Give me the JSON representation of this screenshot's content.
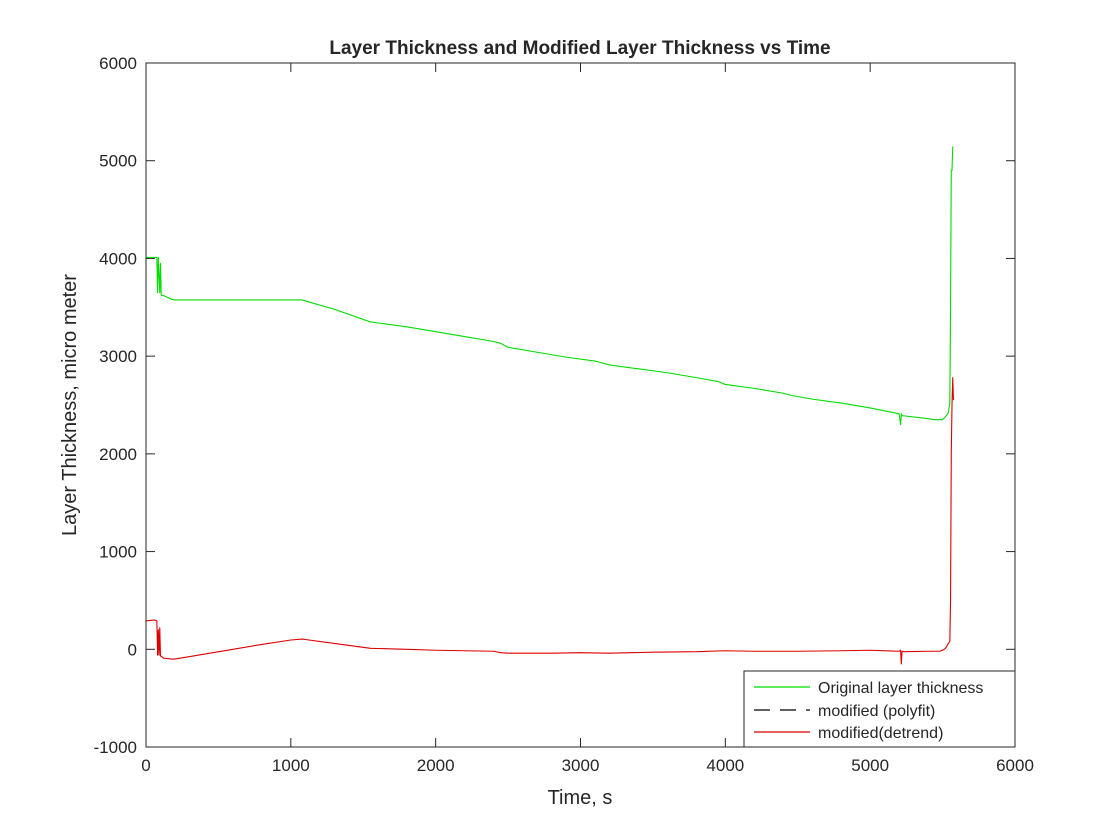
{
  "chart_data": {
    "type": "line",
    "title": "Layer Thickness and Modified Layer Thickness vs Time",
    "xlabel": "Time, s",
    "ylabel": "Layer Thickness, micro meter",
    "xlim": [
      0,
      6000
    ],
    "ylim": [
      -1000,
      6000
    ],
    "xticks": [
      0,
      1000,
      2000,
      3000,
      4000,
      5000,
      6000
    ],
    "yticks": [
      -1000,
      0,
      1000,
      2000,
      3000,
      4000,
      5000,
      6000
    ],
    "xtick_labels": [
      "0",
      "1000",
      "2000",
      "3000",
      "4000",
      "5000",
      "6000"
    ],
    "ytick_labels": [
      "-1000",
      "0",
      "1000",
      "2000",
      "3000",
      "4000",
      "5000",
      "6000"
    ],
    "legend_position": "bottom-right",
    "series": [
      {
        "name": "Original layer thickness",
        "color": "#00dd00",
        "dash": "solid",
        "x": [
          0,
          60,
          75,
          80,
          85,
          95,
          100,
          105,
          110,
          120,
          150,
          180,
          200,
          400,
          800,
          1000,
          1080,
          1100,
          1300,
          1550,
          1800,
          2000,
          2200,
          2400,
          2450,
          2500,
          2700,
          2900,
          3100,
          3200,
          3400,
          3600,
          3800,
          3950,
          4000,
          4200,
          4400,
          4450,
          4600,
          4800,
          5000,
          5200,
          5210,
          5215,
          5220,
          5225,
          5230,
          5400,
          5450,
          5500,
          5520,
          5540,
          5550,
          5555,
          5560,
          5565,
          5570,
          5575
        ],
        "y": [
          4010,
          4010,
          4010,
          3650,
          4010,
          3650,
          3950,
          3630,
          3620,
          3620,
          3600,
          3580,
          3575,
          3575,
          3575,
          3575,
          3575,
          3565,
          3480,
          3350,
          3300,
          3250,
          3200,
          3150,
          3130,
          3090,
          3040,
          2990,
          2950,
          2910,
          2870,
          2830,
          2780,
          2740,
          2710,
          2670,
          2620,
          2600,
          2560,
          2520,
          2470,
          2410,
          2300,
          2410,
          2390,
          2390,
          2390,
          2360,
          2350,
          2350,
          2380,
          2420,
          2520,
          3500,
          4900,
          4900,
          5140,
          5140
        ]
      },
      {
        "name": "modified (polyfit)",
        "color": "#000000",
        "dash": "dashed",
        "x": [],
        "y": []
      },
      {
        "name": "modified(detrend)",
        "color": "#dd0000",
        "dash": "solid",
        "x": [
          0,
          60,
          75,
          80,
          85,
          90,
          95,
          100,
          105,
          120,
          150,
          180,
          200,
          400,
          600,
          800,
          1000,
          1080,
          1100,
          1300,
          1550,
          1800,
          2000,
          2200,
          2400,
          2450,
          2500,
          2800,
          3000,
          3200,
          3500,
          3800,
          4000,
          4200,
          4500,
          4800,
          5000,
          5200,
          5210,
          5215,
          5220,
          5225,
          5230,
          5400,
          5480,
          5500,
          5520,
          5540,
          5550,
          5555,
          5560,
          5565,
          5570,
          5575
        ],
        "y": [
          290,
          300,
          290,
          -60,
          200,
          -60,
          220,
          -70,
          -70,
          -90,
          -95,
          -100,
          -100,
          -50,
          0,
          50,
          95,
          105,
          100,
          60,
          10,
          0,
          -10,
          -15,
          -20,
          -35,
          -40,
          -40,
          -35,
          -40,
          -30,
          -25,
          -15,
          -20,
          -20,
          -15,
          -10,
          -20,
          -10,
          -150,
          -20,
          -20,
          -25,
          -20,
          -20,
          -10,
          10,
          60,
          80,
          500,
          2000,
          2500,
          2780,
          2550
        ]
      }
    ]
  }
}
